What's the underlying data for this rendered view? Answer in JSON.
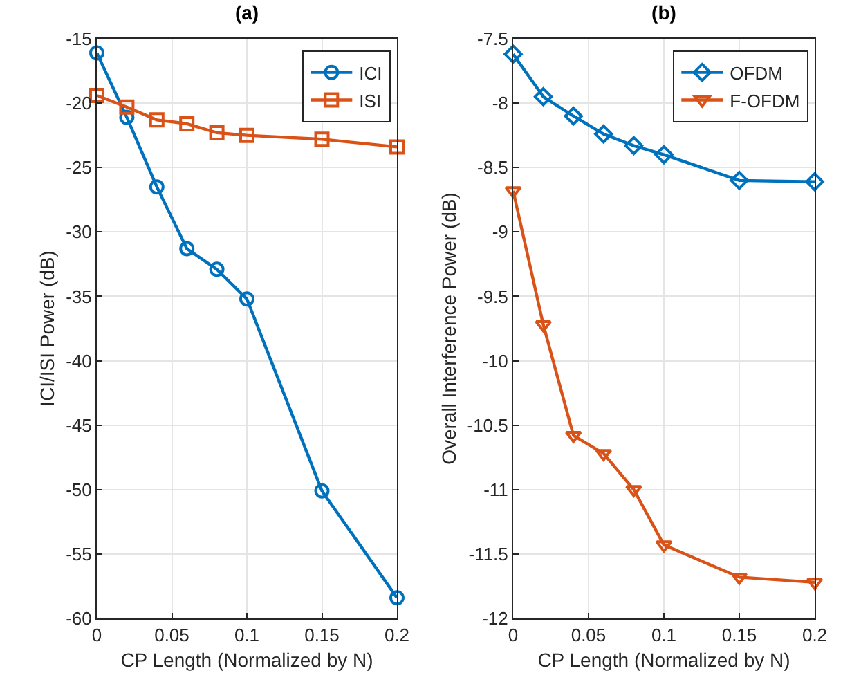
{
  "chart_data": [
    {
      "type": "line",
      "title": "(a)",
      "xlabel": "CP Length (Normalized by N)",
      "ylabel": "ICI/ISI Power (dB)",
      "x": [
        0,
        0.02,
        0.04,
        0.06,
        0.08,
        0.1,
        0.15,
        0.2
      ],
      "xlim": [
        0,
        0.2
      ],
      "xticks": [
        0,
        0.05,
        0.1,
        0.15,
        0.2
      ],
      "ylim": [
        -60,
        -15
      ],
      "yticks": [
        -60,
        -55,
        -50,
        -45,
        -40,
        -35,
        -30,
        -25,
        -20,
        -15
      ],
      "grid": true,
      "legend": "top right",
      "line_style": "solid",
      "series": [
        {
          "name": "ICI",
          "color": "#0072bd",
          "marker": "circle",
          "values": [
            -16.1,
            -21.1,
            -26.5,
            -31.3,
            -32.9,
            -35.2,
            -50.1,
            -58.4
          ]
        },
        {
          "name": "ISI",
          "color": "#d95319",
          "marker": "square",
          "values": [
            -19.4,
            -20.3,
            -21.3,
            -21.6,
            -22.3,
            -22.5,
            -22.8,
            -23.4
          ]
        }
      ]
    },
    {
      "type": "line",
      "title": "(b)",
      "xlabel": "CP Length (Normalized by N)",
      "ylabel": "Overall Interference Power (dB)",
      "x": [
        0,
        0.02,
        0.04,
        0.06,
        0.08,
        0.1,
        0.15,
        0.2
      ],
      "xlim": [
        0,
        0.2
      ],
      "xticks": [
        0,
        0.05,
        0.1,
        0.15,
        0.2
      ],
      "ylim": [
        -12,
        -7.5
      ],
      "yticks": [
        -12,
        -11.5,
        -11,
        -10.5,
        -10,
        -9.5,
        -9,
        -8.5,
        -8,
        -7.5
      ],
      "grid": true,
      "legend": "top right",
      "line_style": "solid",
      "series": [
        {
          "name": "OFDM",
          "color": "#0072bd",
          "marker": "diamond",
          "values": [
            -7.62,
            -7.95,
            -8.1,
            -8.24,
            -8.33,
            -8.4,
            -8.6,
            -8.61
          ]
        },
        {
          "name": "F-OFDM",
          "color": "#d95319",
          "marker": "triangle",
          "values": [
            -8.68,
            -9.72,
            -10.58,
            -10.72,
            -11.0,
            -11.43,
            -11.68,
            -11.72
          ]
        }
      ]
    }
  ]
}
